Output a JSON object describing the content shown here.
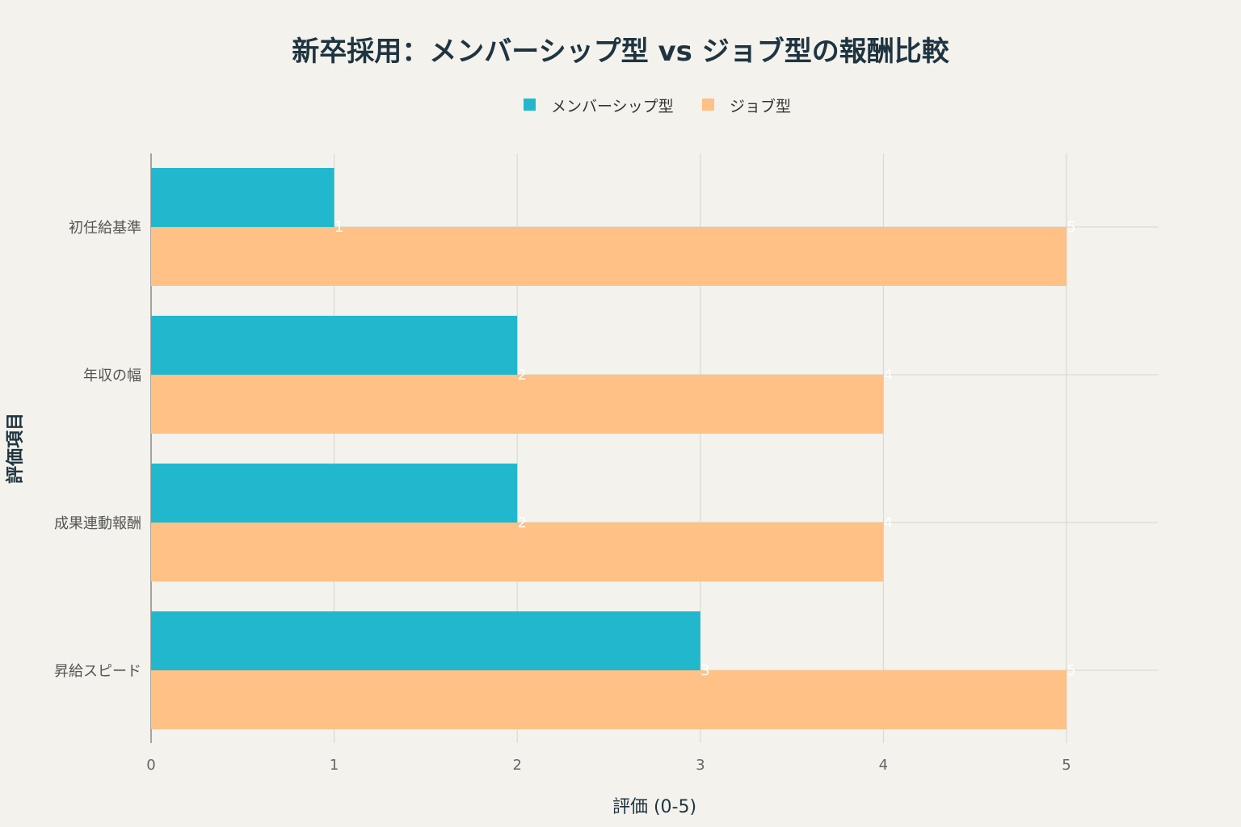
{
  "chart_data": {
    "type": "bar",
    "orientation": "horizontal",
    "title": "新卒採用：メンバーシップ型 vs ジョブ型の報酬比較",
    "xlabel": "評価 (0-5)",
    "ylabel": "評価項目",
    "categories": [
      "初任給基準",
      "年収の幅",
      "成果連動報酬",
      "昇給スピード"
    ],
    "series": [
      {
        "name": "メンバーシップ型",
        "color": "#21b8cd",
        "values": [
          1,
          2,
          2,
          3
        ]
      },
      {
        "name": "ジョブ型",
        "color": "#ffc185",
        "values": [
          5,
          4,
          4,
          5
        ]
      }
    ],
    "xlim": [
      0,
      5.5
    ],
    "xticks": [
      0,
      1,
      2,
      3,
      4,
      5
    ],
    "grid": true,
    "legend_position": "top-center",
    "data_labels": true
  }
}
